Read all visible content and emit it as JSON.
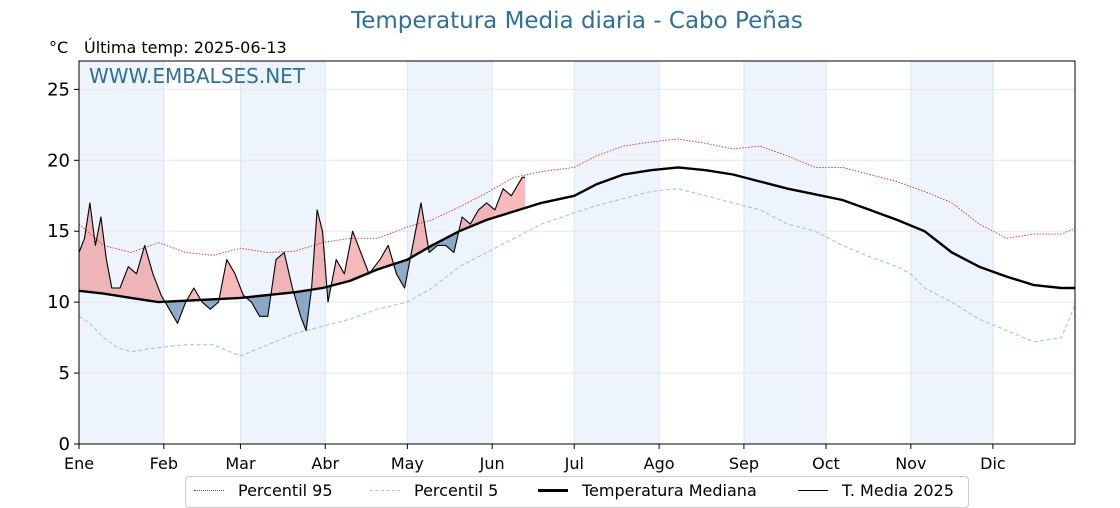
{
  "title": "Temperatura Media diaria - Cabo Peñas",
  "unit_label": "°C",
  "last_temp": "Última temp: 2025-06-13",
  "watermark": "WWW.EMBALSES.NET",
  "colors": {
    "title": "#2e6f9e",
    "p95": "#e03030",
    "p5": "#9fd0e0",
    "median": "#000000",
    "current": "#000000",
    "fill_above": "#f08080",
    "fill_below": "#6a8fb5",
    "band": "#eef4fb"
  },
  "legend": {
    "p95": "Percentil 95",
    "p5": "Percentil 5",
    "median": "Temperatura Mediana",
    "current": "T. Media 2025"
  },
  "chart_data": {
    "type": "line",
    "x_unit": "day of year",
    "xlim": [
      1,
      365
    ],
    "ylim": [
      0,
      27
    ],
    "yticks": [
      0,
      5,
      10,
      15,
      20,
      25
    ],
    "month_labels": [
      "Ene",
      "Feb",
      "Mar",
      "Abr",
      "May",
      "Jun",
      "Jul",
      "Ago",
      "Sep",
      "Oct",
      "Nov",
      "Dic"
    ],
    "month_starts": [
      1,
      32,
      60,
      91,
      121,
      152,
      182,
      213,
      244,
      274,
      305,
      335
    ],
    "grid": true,
    "legend_position": "bottom",
    "series": [
      {
        "name": "Percentil 95",
        "style": "dotted",
        "points": [
          [
            1,
            15.5
          ],
          [
            10,
            14
          ],
          [
            20,
            13.5
          ],
          [
            30,
            14.2
          ],
          [
            40,
            13.5
          ],
          [
            50,
            13.3
          ],
          [
            60,
            13.8
          ],
          [
            70,
            13.5
          ],
          [
            80,
            13.6
          ],
          [
            90,
            14.2
          ],
          [
            100,
            14.5
          ],
          [
            110,
            14.5
          ],
          [
            121,
            15.3
          ],
          [
            130,
            15.8
          ],
          [
            140,
            16.7
          ],
          [
            150,
            17.7
          ],
          [
            160,
            18.8
          ],
          [
            170,
            19.2
          ],
          [
            182,
            19.5
          ],
          [
            190,
            20.3
          ],
          [
            200,
            21
          ],
          [
            210,
            21.3
          ],
          [
            220,
            21.5
          ],
          [
            230,
            21.2
          ],
          [
            240,
            20.8
          ],
          [
            250,
            21
          ],
          [
            260,
            20.3
          ],
          [
            270,
            19.5
          ],
          [
            280,
            19.5
          ],
          [
            290,
            19
          ],
          [
            300,
            18.5
          ],
          [
            310,
            17.8
          ],
          [
            320,
            17
          ],
          [
            330,
            15.5
          ],
          [
            340,
            14.5
          ],
          [
            350,
            14.8
          ],
          [
            360,
            14.8
          ],
          [
            365,
            15.2
          ]
        ]
      },
      {
        "name": "Percentil 5",
        "style": "dashed",
        "points": [
          [
            1,
            9
          ],
          [
            5,
            8.5
          ],
          [
            10,
            7.5
          ],
          [
            15,
            6.8
          ],
          [
            20,
            6.5
          ],
          [
            30,
            6.8
          ],
          [
            40,
            7
          ],
          [
            50,
            7
          ],
          [
            60,
            6.2
          ],
          [
            70,
            7
          ],
          [
            80,
            7.8
          ],
          [
            90,
            8.3
          ],
          [
            100,
            8.8
          ],
          [
            110,
            9.5
          ],
          [
            121,
            10
          ],
          [
            130,
            11
          ],
          [
            140,
            12.5
          ],
          [
            150,
            13.5
          ],
          [
            160,
            14.5
          ],
          [
            170,
            15.5
          ],
          [
            182,
            16.3
          ],
          [
            190,
            16.8
          ],
          [
            200,
            17.3
          ],
          [
            210,
            17.8
          ],
          [
            220,
            18
          ],
          [
            230,
            17.5
          ],
          [
            240,
            17
          ],
          [
            250,
            16.5
          ],
          [
            260,
            15.5
          ],
          [
            270,
            15
          ],
          [
            280,
            14
          ],
          [
            290,
            13.2
          ],
          [
            300,
            12.5
          ],
          [
            305,
            12
          ],
          [
            310,
            11
          ],
          [
            320,
            10
          ],
          [
            330,
            8.8
          ],
          [
            340,
            8
          ],
          [
            350,
            7.2
          ],
          [
            360,
            7.5
          ],
          [
            365,
            9.8
          ]
        ]
      },
      {
        "name": "Temperatura Mediana",
        "style": "solid-thick",
        "points": [
          [
            1,
            10.8
          ],
          [
            10,
            10.6
          ],
          [
            20,
            10.3
          ],
          [
            30,
            10
          ],
          [
            40,
            10.1
          ],
          [
            50,
            10.2
          ],
          [
            60,
            10.3
          ],
          [
            70,
            10.5
          ],
          [
            80,
            10.7
          ],
          [
            90,
            11
          ],
          [
            100,
            11.5
          ],
          [
            110,
            12.3
          ],
          [
            121,
            13
          ],
          [
            130,
            14
          ],
          [
            140,
            15
          ],
          [
            150,
            15.8
          ],
          [
            160,
            16.4
          ],
          [
            170,
            17
          ],
          [
            182,
            17.5
          ],
          [
            190,
            18.3
          ],
          [
            200,
            19
          ],
          [
            210,
            19.3
          ],
          [
            220,
            19.5
          ],
          [
            230,
            19.3
          ],
          [
            240,
            19
          ],
          [
            250,
            18.5
          ],
          [
            260,
            18
          ],
          [
            270,
            17.6
          ],
          [
            280,
            17.2
          ],
          [
            290,
            16.5
          ],
          [
            300,
            15.8
          ],
          [
            310,
            15
          ],
          [
            320,
            13.5
          ],
          [
            330,
            12.5
          ],
          [
            340,
            11.8
          ],
          [
            350,
            11.2
          ],
          [
            360,
            11
          ],
          [
            365,
            11
          ]
        ]
      },
      {
        "name": "T. Media 2025",
        "style": "solid-thin",
        "points": [
          [
            1,
            13.5
          ],
          [
            3,
            14.5
          ],
          [
            5,
            17
          ],
          [
            7,
            14
          ],
          [
            9,
            16
          ],
          [
            11,
            13
          ],
          [
            13,
            11
          ],
          [
            16,
            11
          ],
          [
            19,
            12.5
          ],
          [
            22,
            12
          ],
          [
            25,
            14
          ],
          [
            28,
            12
          ],
          [
            31,
            10.5
          ],
          [
            34,
            9.5
          ],
          [
            37,
            8.5
          ],
          [
            40,
            10
          ],
          [
            43,
            11
          ],
          [
            46,
            10
          ],
          [
            49,
            9.5
          ],
          [
            52,
            10
          ],
          [
            55,
            13
          ],
          [
            58,
            12
          ],
          [
            61,
            10.5
          ],
          [
            64,
            10
          ],
          [
            67,
            9
          ],
          [
            70,
            9
          ],
          [
            73,
            13
          ],
          [
            76,
            13.5
          ],
          [
            79,
            11
          ],
          [
            82,
            9
          ],
          [
            84,
            8
          ],
          [
            86,
            11
          ],
          [
            88,
            16.5
          ],
          [
            90,
            15
          ],
          [
            92,
            10
          ],
          [
            95,
            13
          ],
          [
            98,
            12
          ],
          [
            101,
            15
          ],
          [
            104,
            13.5
          ],
          [
            107,
            12
          ],
          [
            111,
            13
          ],
          [
            114,
            14
          ],
          [
            117,
            12
          ],
          [
            120,
            11
          ],
          [
            123,
            14
          ],
          [
            126,
            17
          ],
          [
            129,
            13.5
          ],
          [
            132,
            14
          ],
          [
            135,
            14
          ],
          [
            138,
            13.5
          ],
          [
            141,
            16
          ],
          [
            144,
            15.5
          ],
          [
            147,
            16.5
          ],
          [
            150,
            17
          ],
          [
            153,
            16.5
          ],
          [
            156,
            18
          ],
          [
            159,
            17.5
          ],
          [
            163,
            18.8
          ],
          [
            164,
            18.8
          ]
        ]
      }
    ]
  }
}
